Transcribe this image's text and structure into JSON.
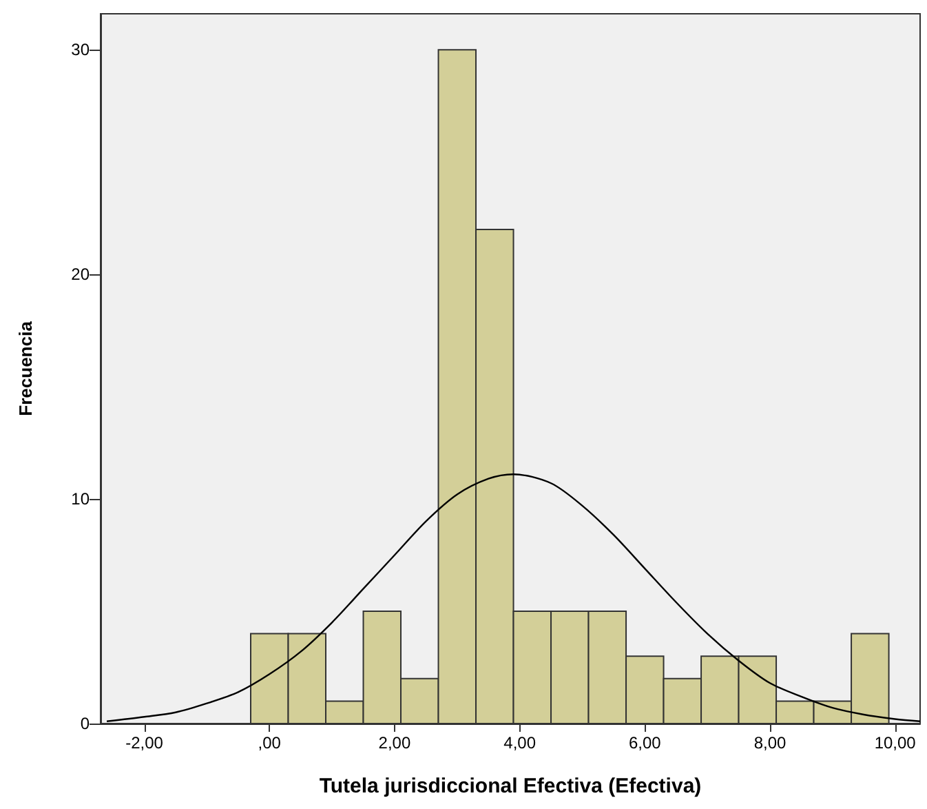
{
  "chart_data": {
    "type": "histogram",
    "xlabel": "Tutela jurisdiccional Efectiva (Efectiva)",
    "ylabel": "Frecuencia",
    "xlim": [
      -2.7,
      10.4
    ],
    "ylim": [
      0,
      31.6
    ],
    "xticks": [
      {
        "value": -2,
        "label": "-2,00"
      },
      {
        "value": 0,
        "label": ",00"
      },
      {
        "value": 2,
        "label": "2,00"
      },
      {
        "value": 4,
        "label": "4,00"
      },
      {
        "value": 6,
        "label": "6,00"
      },
      {
        "value": 8,
        "label": "8,00"
      },
      {
        "value": 10,
        "label": "10,00"
      }
    ],
    "yticks": [
      0,
      10,
      20,
      30
    ],
    "grid": false,
    "series": [
      {
        "color": "#d3cf98",
        "bins": [
          -0.3,
          0.3,
          0.9,
          1.5,
          2.1,
          2.7,
          3.3,
          3.9,
          4.5,
          5.1,
          5.7,
          6.3,
          6.9,
          7.5,
          8.1,
          8.7,
          9.3,
          9.9
        ],
        "values": [
          4,
          4,
          1,
          5,
          2,
          30,
          22,
          5,
          5,
          5,
          3,
          2,
          3,
          3,
          1,
          1,
          4
        ]
      },
      {
        "type": "line",
        "color": "#000000",
        "marker": "none",
        "line_style": "solid",
        "x": [
          -2.6,
          -2,
          -1.5,
          -1,
          -0.5,
          0,
          0.5,
          1,
          1.5,
          2,
          2.5,
          3,
          3.5,
          3.9,
          4.5,
          5,
          5.5,
          6,
          6.5,
          7,
          7.5,
          8,
          8.5,
          9,
          9.5,
          10,
          10.4
        ],
        "values": [
          0.1,
          0.3,
          0.5,
          0.9,
          1.4,
          2.2,
          3.2,
          4.5,
          6.0,
          7.5,
          9.0,
          10.2,
          10.9,
          11.1,
          10.7,
          9.7,
          8.4,
          6.9,
          5.4,
          4.0,
          2.8,
          1.8,
          1.2,
          0.7,
          0.4,
          0.2,
          0.1
        ]
      }
    ]
  }
}
